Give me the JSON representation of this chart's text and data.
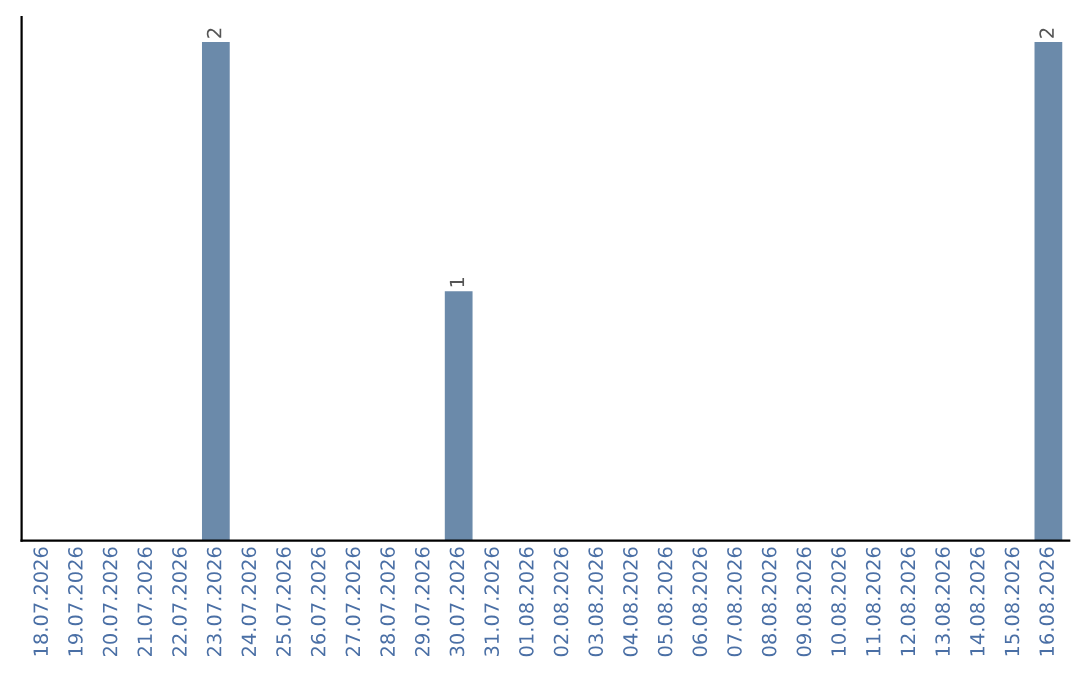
{
  "chart_data": {
    "type": "bar",
    "categories": [
      "18.07.2026",
      "19.07.2026",
      "20.07.2026",
      "21.07.2026",
      "22.07.2026",
      "23.07.2026",
      "24.07.2026",
      "25.07.2026",
      "26.07.2026",
      "27.07.2026",
      "28.07.2026",
      "29.07.2026",
      "30.07.2026",
      "31.07.2026",
      "01.08.2026",
      "02.08.2026",
      "03.08.2026",
      "04.08.2026",
      "05.08.2026",
      "06.08.2026",
      "07.08.2026",
      "08.08.2026",
      "09.08.2026",
      "10.08.2026",
      "11.08.2026",
      "12.08.2026",
      "13.08.2026",
      "14.08.2026",
      "15.08.2026",
      "16.08.2026"
    ],
    "values": [
      0,
      0,
      0,
      0,
      0,
      2,
      0,
      0,
      0,
      0,
      0,
      0,
      1,
      0,
      0,
      0,
      0,
      0,
      0,
      0,
      0,
      0,
      0,
      0,
      0,
      0,
      0,
      0,
      0,
      2
    ],
    "value_labels": [
      null,
      null,
      null,
      null,
      null,
      "2",
      null,
      null,
      null,
      null,
      null,
      null,
      "1",
      null,
      null,
      null,
      null,
      null,
      null,
      null,
      null,
      null,
      null,
      null,
      null,
      null,
      null,
      null,
      null,
      "2"
    ],
    "color": "#6b8aaa",
    "grid": false,
    "legend": false
  }
}
